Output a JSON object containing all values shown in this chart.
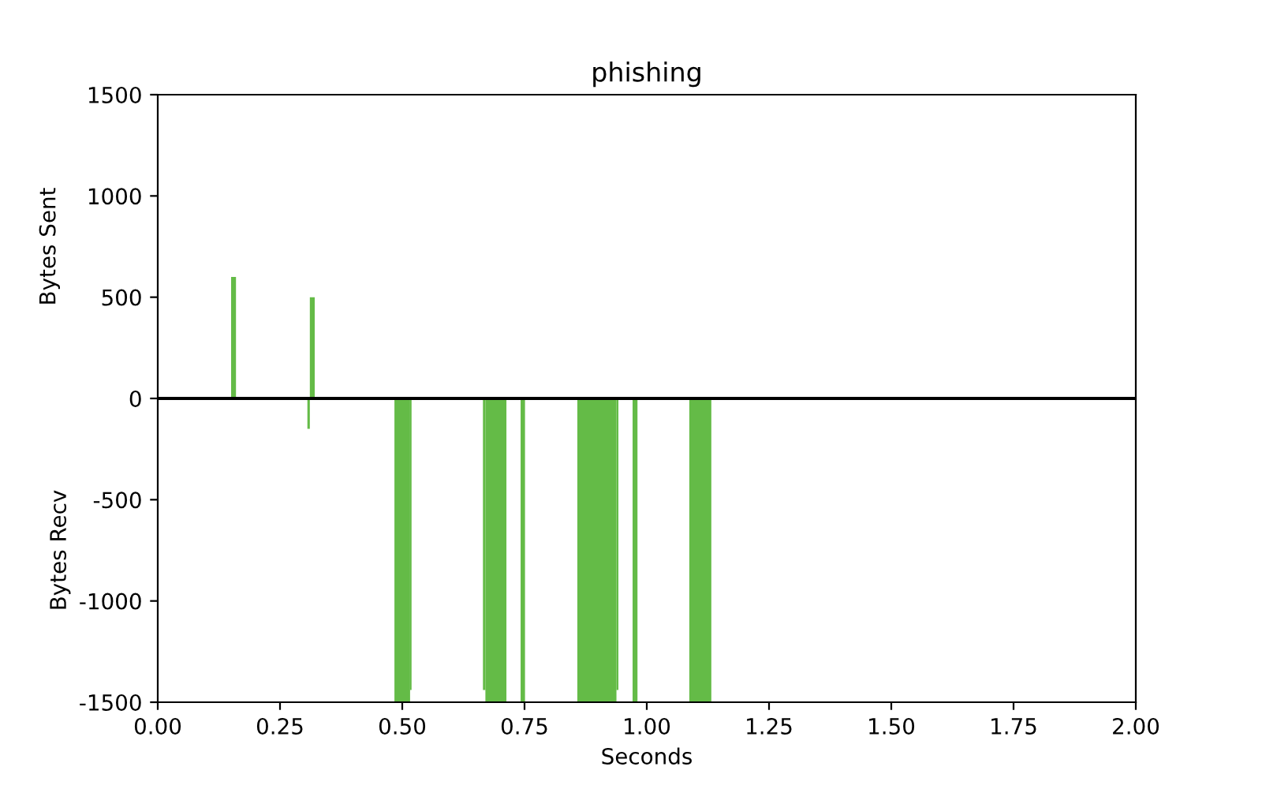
{
  "chart_data": {
    "type": "histogram",
    "title": "phishing",
    "xlabel": "Seconds",
    "ylabel": "Bytes Sent",
    "annotations": [
      "Bytes Recv"
    ],
    "bins": [
      0.15,
      0.16,
      0.306,
      0.311,
      0.321,
      0.484,
      0.516,
      0.519,
      0.665,
      0.67,
      0.713,
      0.742,
      0.751,
      0.858,
      0.938,
      0.942,
      0.971,
      0.981,
      1.087,
      1.132
    ],
    "values": [
      600,
      0,
      -150,
      500,
      0,
      -1500,
      -1440,
      0,
      -1440,
      -1500,
      0,
      -1500,
      0,
      -1500,
      -1440,
      0,
      -1500,
      0,
      -1500
    ],
    "color": "#64bb47",
    "xlim": [
      0,
      2
    ],
    "xticks": [
      {
        "value": 0,
        "label": "0.00"
      },
      {
        "value": 0.25,
        "label": "0.25"
      },
      {
        "value": 0.5,
        "label": "0.50"
      },
      {
        "value": 0.75,
        "label": "0.75"
      },
      {
        "value": 1,
        "label": "1.00"
      },
      {
        "value": 1.25,
        "label": "1.25"
      },
      {
        "value": 1.5,
        "label": "1.50"
      },
      {
        "value": 1.75,
        "label": "1.75"
      },
      {
        "value": 2,
        "label": "2.00"
      }
    ],
    "ylim": [
      -1500,
      1500
    ],
    "yticks": [
      -1500,
      -1000,
      -500,
      0,
      500,
      1000,
      1500
    ],
    "ref_lines": [
      {
        "axis": "y",
        "value": 0,
        "color": "#000000",
        "line_style": "solid"
      }
    ],
    "grid": false,
    "legend": false
  }
}
